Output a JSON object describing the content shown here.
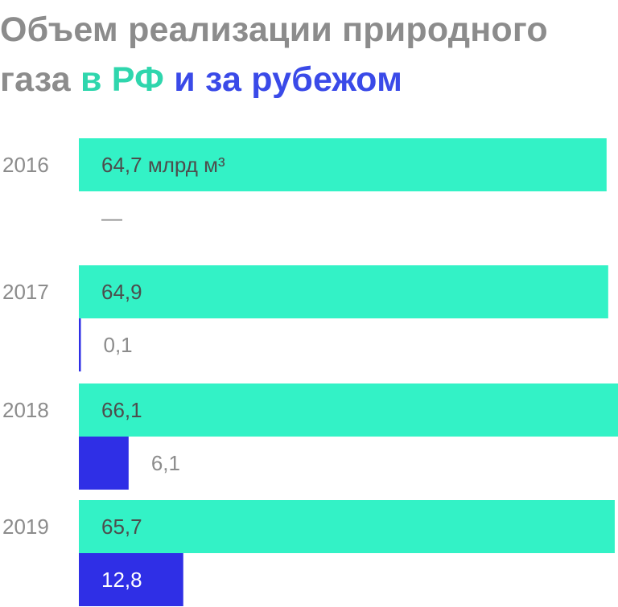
{
  "title": {
    "part1": "Объем реализации природного",
    "part2": "газа",
    "highlight_domestic": "в РФ",
    "highlight_abroad": "и за рубежом"
  },
  "colors": {
    "domestic": "#33f2c6",
    "abroad": "#2f2fe6",
    "year_text": "#8c8c8c",
    "label_dark": "#4d4d4d",
    "label_muted": "#8c8c8c",
    "label_on_dark": "#ffffff"
  },
  "chart_data": {
    "type": "bar",
    "orientation": "horizontal",
    "unit": "млрд м³",
    "categories": [
      "2016",
      "2017",
      "2018",
      "2019"
    ],
    "series": [
      {
        "name": "в РФ",
        "values": [
          64.7,
          64.9,
          66.1,
          65.7
        ],
        "labels": [
          "64,7 млрд м³",
          "64,9",
          "66,1",
          "65,7"
        ]
      },
      {
        "name": "и за рубежом",
        "values": [
          null,
          0.1,
          6.1,
          12.8
        ],
        "labels": [
          "—",
          "0,1",
          "6,1",
          "12,8"
        ]
      }
    ],
    "xlim": [
      0,
      66.1
    ],
    "grid": false,
    "legend": "title"
  }
}
